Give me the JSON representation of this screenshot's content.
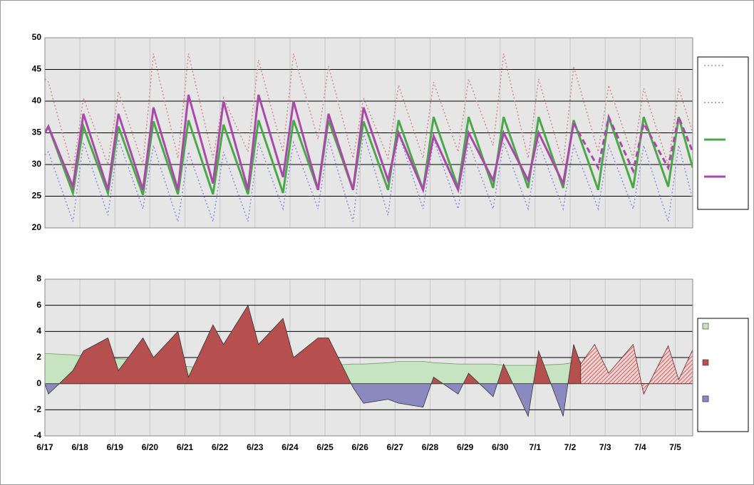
{
  "chart_data": [
    {
      "type": "line",
      "x": [
        0,
        0.1,
        0.8,
        1.1,
        1.8,
        2.1,
        2.8,
        3.1,
        3.8,
        4.1,
        4.8,
        5.1,
        5.8,
        6.1,
        6.8,
        7.1,
        7.8,
        8.1,
        8.8,
        9.1,
        9.8,
        10.1,
        10.8,
        11.1,
        11.8,
        12.1,
        12.8,
        13.1,
        13.8,
        14.1,
        14.8,
        15.1,
        15.8,
        16.1,
        16.8,
        17.1,
        17.8,
        18.1,
        18.5
      ],
      "xlim": [
        0,
        18.5
      ],
      "xticks": [
        0,
        1,
        2,
        3,
        4,
        5,
        6,
        7,
        8,
        9,
        10,
        11,
        12,
        13,
        14,
        15,
        16,
        17,
        18
      ],
      "ylim": [
        20,
        50
      ],
      "yticks": [
        20,
        25,
        30,
        35,
        40,
        45,
        50
      ],
      "grid": true,
      "series": [
        {
          "color": "#d08a8a",
          "style": "dotted",
          "width": 1.5,
          "values": [
            43.5,
            43,
            29,
            40.5,
            30,
            41.5,
            30,
            47.5,
            31,
            47.5,
            31,
            40.5,
            32,
            46.5,
            32,
            47.5,
            34,
            45.5,
            31,
            40.5,
            31,
            42.5,
            31,
            43,
            32,
            43.5,
            33,
            47.5,
            31,
            43.5,
            30,
            45.5,
            32,
            42.5,
            31,
            42,
            30,
            42,
            35
          ]
        },
        {
          "color": "#8c8cd8",
          "style": "dotted",
          "width": 1.5,
          "values": [
            31.5,
            32,
            21,
            33.5,
            22,
            34,
            23,
            33,
            21,
            32,
            21,
            32,
            21,
            33.5,
            23,
            33.5,
            23,
            34,
            21,
            35,
            22,
            35,
            23,
            34,
            23,
            33.5,
            23,
            33.5,
            23,
            33.5,
            23,
            33,
            23,
            33,
            23,
            33,
            21,
            33,
            24.5
          ]
        },
        {
          "color": "#4aa84a",
          "style": "solid",
          "width": 3,
          "values": [
            35,
            36,
            25.5,
            36,
            25.5,
            36,
            25.2,
            36.8,
            25.3,
            37,
            25.3,
            36.3,
            25.3,
            37,
            25.5,
            37,
            26,
            37,
            26,
            36.8,
            26,
            37,
            26,
            37.5,
            26.3,
            37.5,
            26.3,
            37.5,
            26.3,
            37.5,
            26.3,
            37,
            26,
            37.5,
            26.3,
            37.5,
            26.5,
            37.5,
            29.5
          ]
        },
        {
          "color": "#a94aa9",
          "style": "solid",
          "width": 3,
          "values": [
            35,
            36,
            26.5,
            38,
            26,
            38,
            26,
            39,
            26,
            41,
            27,
            40,
            26,
            41,
            28,
            40,
            26,
            38,
            26,
            39,
            27.5,
            35,
            26,
            34.5,
            26,
            35,
            27.5,
            35,
            27.5,
            35,
            27,
            36.5,
            null,
            null,
            null,
            null,
            null,
            null,
            null
          ]
        },
        {
          "color": "#a94aa9",
          "style": "dashed",
          "width": 3,
          "values": [
            null,
            null,
            null,
            null,
            null,
            null,
            null,
            null,
            null,
            null,
            null,
            null,
            null,
            null,
            null,
            null,
            null,
            null,
            null,
            null,
            null,
            null,
            null,
            null,
            null,
            null,
            null,
            null,
            null,
            null,
            null,
            36.5,
            29.5,
            37.5,
            29,
            36.5,
            29.5,
            37.5,
            32
          ]
        }
      ]
    },
    {
      "type": "area",
      "x": [
        0,
        0.1,
        0.8,
        1.1,
        1.8,
        2.1,
        2.8,
        3.1,
        3.8,
        4.1,
        4.8,
        5.1,
        5.8,
        6.1,
        6.8,
        7.1,
        7.8,
        8.1,
        8.8,
        9.1,
        9.8,
        10.1,
        10.8,
        11.1,
        11.8,
        12.1,
        12.8,
        13.1,
        13.8,
        14.1,
        14.8,
        15.1,
        15.3,
        15.7,
        16.1,
        16.8,
        17.1,
        17.8,
        18.1,
        18.5
      ],
      "xlim": [
        0,
        18.5
      ],
      "xticks": [
        {
          "value": 0,
          "label": "6/17"
        },
        {
          "value": 1,
          "label": "6/18"
        },
        {
          "value": 2,
          "label": "6/19"
        },
        {
          "value": 3,
          "label": "6/20"
        },
        {
          "value": 4,
          "label": "6/21"
        },
        {
          "value": 5,
          "label": "6/22"
        },
        {
          "value": 6,
          "label": "6/23"
        },
        {
          "value": 7,
          "label": "6/24"
        },
        {
          "value": 8,
          "label": "6/25"
        },
        {
          "value": 9,
          "label": "6/26"
        },
        {
          "value": 10,
          "label": "6/27"
        },
        {
          "value": 11,
          "label": "6/28"
        },
        {
          "value": 12,
          "label": "6/29"
        },
        {
          "value": 13,
          "label": "6/30"
        },
        {
          "value": 14,
          "label": "7/1"
        },
        {
          "value": 15,
          "label": "7/2"
        },
        {
          "value": 16,
          "label": "7/3"
        },
        {
          "value": 17,
          "label": "7/4"
        },
        {
          "value": 18,
          "label": "7/5"
        }
      ],
      "ylim": [
        -4,
        8
      ],
      "yticks": [
        -4,
        -2,
        0,
        2,
        4,
        6,
        8
      ],
      "grid": true,
      "series": [
        {
          "color": "#c6e4bf",
          "style": "band",
          "values": [
            2.3,
            2.3,
            2.2,
            2.1,
            2,
            1.9,
            1.8,
            1.6,
            1.4,
            1.3,
            1.2,
            1.2,
            1.2,
            1.2,
            1.3,
            1.3,
            1.4,
            1.4,
            1.5,
            1.5,
            1.6,
            1.7,
            1.7,
            1.6,
            1.5,
            1.5,
            1.5,
            1.4,
            1.4,
            1.4,
            1.5,
            1.6,
            1.7,
            null,
            null,
            null,
            null,
            null,
            null,
            null
          ]
        },
        {
          "color": "#b5504e",
          "negative_color": "#8a8ac0",
          "style": "split",
          "values": [
            0,
            -0.8,
            1,
            2.5,
            3.5,
            1,
            3.5,
            2,
            4,
            0.5,
            4.5,
            3,
            6,
            3,
            5,
            2,
            3.5,
            3.5,
            -0.3,
            -1.5,
            -1.2,
            -1.5,
            -1.8,
            0.5,
            -0.8,
            0.8,
            -1,
            1.5,
            -2.5,
            2.5,
            -2.5,
            3,
            1.5,
            null,
            null,
            null,
            null,
            null,
            null,
            null
          ]
        },
        {
          "color": "#b5504e",
          "style": "hatched",
          "values": [
            null,
            null,
            null,
            null,
            null,
            null,
            null,
            null,
            null,
            null,
            null,
            null,
            null,
            null,
            null,
            null,
            null,
            null,
            null,
            null,
            null,
            null,
            null,
            null,
            null,
            null,
            null,
            null,
            null,
            null,
            null,
            null,
            1.5,
            3,
            0.8,
            3,
            -0.8,
            2.9,
            0.3,
            2.6
          ]
        }
      ]
    }
  ]
}
